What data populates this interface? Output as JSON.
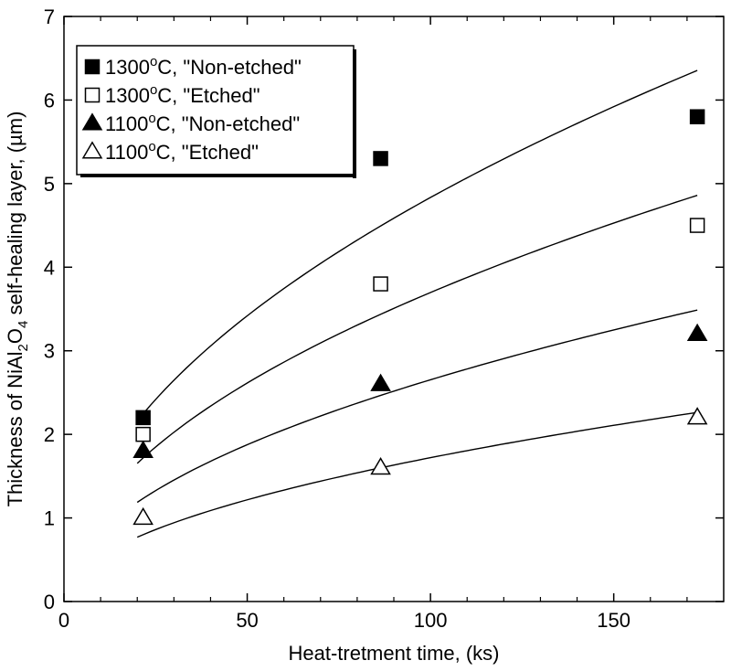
{
  "chart_data": {
    "type": "scatter",
    "xlabel": "Heat-tretment time, (ks)",
    "ylabel": {
      "pre": "Thickness of NiAl",
      "sub1": "2",
      "mid": "O",
      "sub2": "4",
      "post": " self-healing layer, (µm)"
    },
    "xlim": [
      0,
      180
    ],
    "ylim": [
      0,
      7
    ],
    "xticks": [
      0,
      50,
      100,
      150
    ],
    "yticks": [
      0,
      1,
      2,
      3,
      4,
      5,
      6,
      7
    ],
    "grid": false,
    "legend_position": "top-left",
    "series": [
      {
        "name": {
          "temp": "1300",
          "sup": "o",
          "rest": "C, \"Non-etched\""
        },
        "marker": "square-filled",
        "x": [
          21.6,
          86.4,
          172.8
        ],
        "y": [
          2.2,
          5.3,
          5.8
        ],
        "fit_curve": {
          "coef": 0.4834
        }
      },
      {
        "name": {
          "temp": "1300",
          "sup": "o",
          "rest": "C, \"Etched\""
        },
        "marker": "square-open",
        "x": [
          21.6,
          86.4,
          172.8
        ],
        "y": [
          2.0,
          3.8,
          4.5
        ],
        "fit_curve": {
          "coef": 0.3697
        }
      },
      {
        "name": {
          "temp": "1100",
          "sup": "o",
          "rest": "C, \"Non-etched\""
        },
        "marker": "triangle-filled",
        "x": [
          21.6,
          86.4,
          172.8
        ],
        "y": [
          1.8,
          2.6,
          3.2
        ],
        "fit_curve": {
          "coef": 0.2653
        }
      },
      {
        "name": {
          "temp": "1100",
          "sup": "o",
          "rest": "C, \"Etched\""
        },
        "marker": "triangle-open",
        "x": [
          21.6,
          86.4,
          172.8
        ],
        "y": [
          1.0,
          1.6,
          2.2
        ],
        "fit_curve": {
          "coef": 0.1721
        }
      }
    ]
  }
}
